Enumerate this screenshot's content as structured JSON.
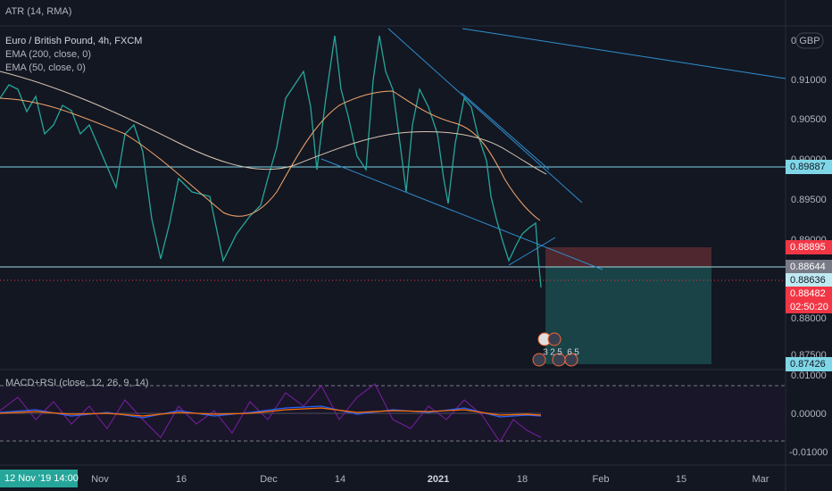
{
  "top_indicator": "ATR (14, RMA)",
  "legend": {
    "symbol": "Euro / British Pound, 4h, FXCM",
    "indicators": [
      "EMA (200, close, 0)",
      "EMA (50, close, 0)"
    ]
  },
  "currency_button": "GBP",
  "partial_price_label": "0",
  "price_axis": [
    "0.91000",
    "0.90500",
    "0.90000",
    "0.89500",
    "0.89000",
    "0.88000",
    "0.87500"
  ],
  "price_badges": [
    "0.89887",
    "0.88895",
    "0.88644",
    "0.88636",
    "0.88482",
    "02:50:20",
    "0.87426"
  ],
  "event_markers": [
    "3",
    "2",
    "5",
    "6",
    "5"
  ],
  "lower_indicator": "MACD+RSI (close, 12, 26, 9, 14)",
  "macd_axis": [
    "0.01000",
    "0.00000",
    "-0.01000"
  ],
  "cursor_date": "12 Nov '19   14:00",
  "time_axis": [
    "Nov",
    "16",
    "Dec",
    "14",
    "2021",
    "18",
    "Feb",
    "15",
    "Mar"
  ]
}
